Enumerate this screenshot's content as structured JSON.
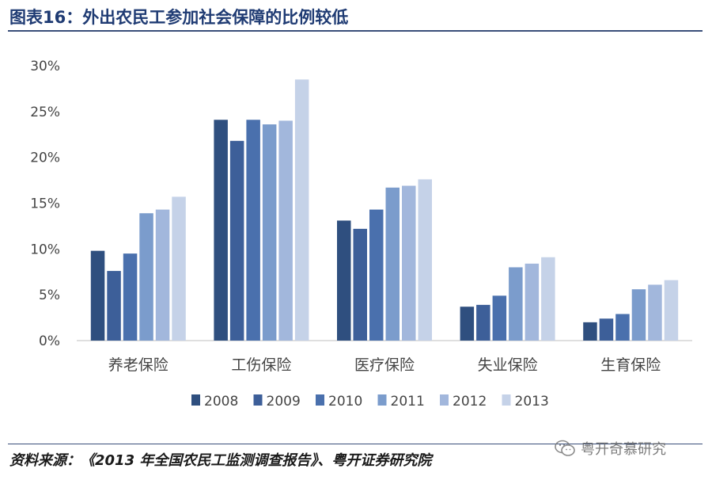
{
  "header": {
    "title": "图表16：外出农民工参加社会保障的比例较低"
  },
  "footer": {
    "source": "资料来源：《2013 年全国农民工监测调查报告》、粤开证券研究院",
    "watermark": "粤开奇慕研究",
    "watermark_icon": "wechat-icon"
  },
  "chart_data": {
    "type": "bar",
    "categories": [
      "养老保险",
      "工伤保险",
      "医疗保险",
      "失业保险",
      "生育保险"
    ],
    "series": [
      {
        "name": "2008",
        "color": "#2f4f7f",
        "values": [
          9.8,
          24.1,
          13.1,
          3.7,
          2.0
        ]
      },
      {
        "name": "2009",
        "color": "#3d5f99",
        "values": [
          7.6,
          21.8,
          12.2,
          3.9,
          2.4
        ]
      },
      {
        "name": "2010",
        "color": "#4a70ad",
        "values": [
          9.5,
          24.1,
          14.3,
          4.9,
          2.9
        ]
      },
      {
        "name": "2011",
        "color": "#7b9ccc",
        "values": [
          13.9,
          23.6,
          16.7,
          8.0,
          5.6
        ]
      },
      {
        "name": "2012",
        "color": "#a2b7dc",
        "values": [
          14.3,
          24.0,
          16.9,
          8.4,
          6.1
        ]
      },
      {
        "name": "2013",
        "color": "#c5d2e8",
        "values": [
          15.7,
          28.5,
          17.6,
          9.1,
          6.6
        ]
      }
    ],
    "ylim": [
      0,
      30
    ],
    "yticks": [
      "0%",
      "5%",
      "10%",
      "15%",
      "20%",
      "25%",
      "30%"
    ],
    "ytick_values": [
      0,
      5,
      10,
      15,
      20,
      25,
      30
    ],
    "grid": false,
    "legend_position": "bottom"
  }
}
